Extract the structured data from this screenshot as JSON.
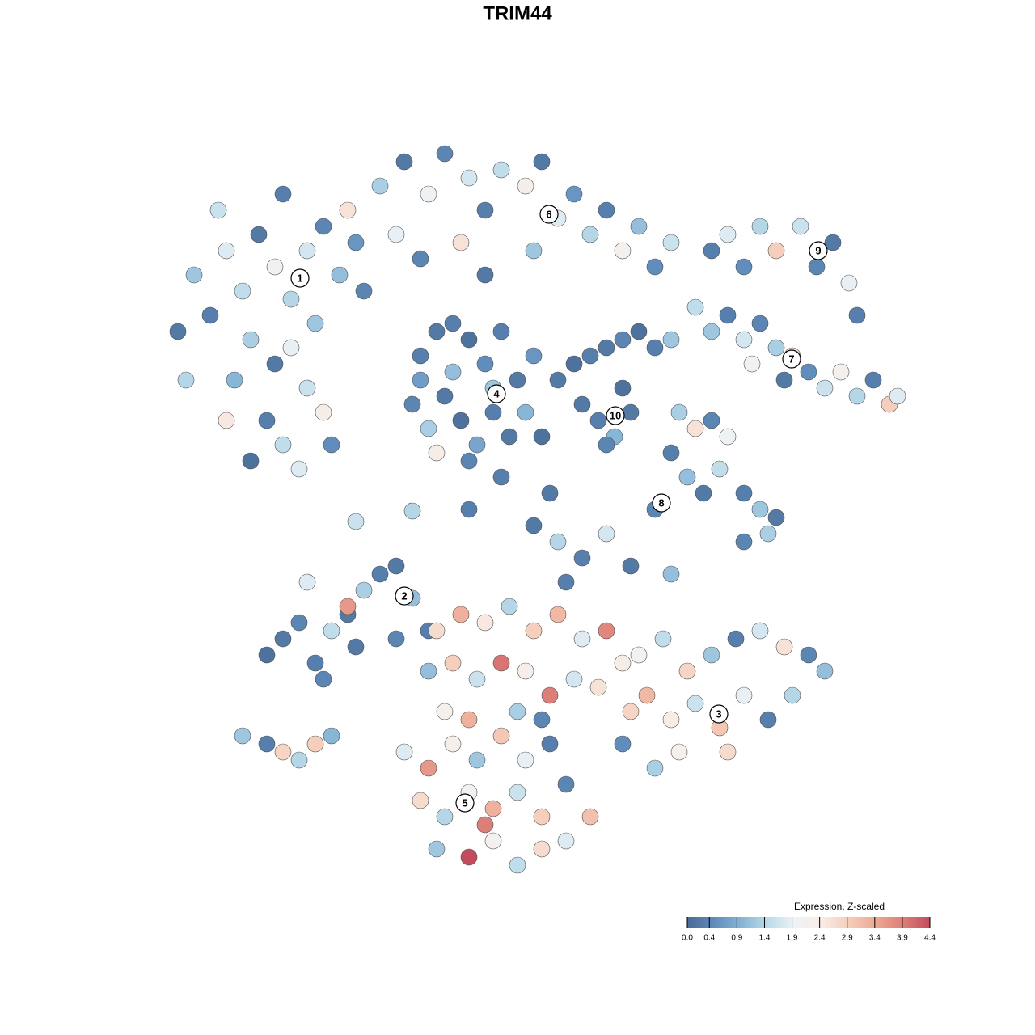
{
  "chart_data": {
    "type": "scatter",
    "title": "TRIM44",
    "xlim": [
      -64,
      64
    ],
    "ylim": [
      -64,
      64
    ],
    "x": [
      -40,
      -38,
      -36,
      -34,
      -32,
      -30,
      -28,
      -26,
      -24,
      -22,
      -20,
      -33,
      -30,
      -28,
      -26,
      -24,
      -31,
      -29,
      -33,
      -27,
      -23,
      -35,
      -42,
      -41,
      -37,
      -29,
      -21,
      -19,
      -25,
      -36,
      -17,
      -14,
      -11,
      -9,
      -6,
      -4,
      -2,
      1,
      3,
      5,
      7,
      9,
      11,
      13,
      15,
      17,
      19,
      -15,
      -12,
      -7,
      2,
      -4,
      -12,
      -10,
      -8,
      -6,
      -4,
      -2,
      0,
      2,
      -13,
      -11,
      -9,
      -7,
      -5,
      -3,
      -1,
      1,
      -10,
      -6,
      -8,
      -3,
      3,
      -12,
      5,
      7,
      9,
      11,
      13,
      15,
      17,
      19,
      8,
      10,
      12,
      14,
      13,
      11,
      22,
      24,
      26,
      28,
      30,
      32,
      34,
      36,
      38,
      40,
      42,
      44,
      46,
      47,
      33,
      29,
      24,
      26,
      28,
      30,
      32,
      35,
      37,
      39,
      41,
      42,
      20,
      22,
      24,
      26,
      19,
      21,
      23,
      25,
      28,
      30,
      32,
      28,
      31,
      2,
      5,
      8,
      11,
      14,
      17,
      19,
      6,
      -29,
      -31,
      -27,
      -25,
      -23,
      -21,
      -19,
      -17,
      -15,
      -13,
      -11,
      -24,
      -26,
      -20,
      -21,
      -15,
      -34,
      -31,
      -29,
      -27,
      -25,
      -23,
      -10,
      -7,
      -4,
      -1,
      2,
      5,
      8,
      11,
      13,
      -11,
      -8,
      -5,
      -2,
      1,
      4,
      7,
      10,
      -9,
      -6,
      0,
      3,
      14,
      15,
      18,
      21,
      24,
      27,
      30,
      33,
      36,
      38,
      16,
      19,
      22,
      25,
      28,
      31,
      34,
      20,
      17,
      26,
      13,
      -14,
      -11,
      -8,
      -5,
      -2,
      1,
      4,
      -12,
      -9,
      -6,
      -3,
      0,
      3,
      6,
      9,
      -10,
      -6,
      -3,
      0,
      3,
      6,
      -4,
      -20,
      -13,
      -6,
      4,
      -2
    ],
    "y": [
      30,
      25,
      33,
      28,
      35,
      31,
      27,
      33,
      36,
      30,
      34,
      22,
      19,
      21,
      16,
      13,
      12,
      9,
      7,
      6,
      9,
      17,
      23,
      17,
      38,
      40,
      38,
      28,
      24,
      12,
      41,
      44,
      40,
      45,
      42,
      38,
      43,
      41,
      44,
      37,
      40,
      35,
      38,
      33,
      36,
      31,
      34,
      35,
      32,
      34,
      33,
      30,
      20,
      23,
      18,
      22,
      19,
      23,
      17,
      20,
      14,
      11,
      15,
      12,
      9,
      13,
      10,
      13,
      8,
      7,
      24,
      16,
      10,
      17,
      17,
      19,
      20,
      21,
      22,
      23,
      21,
      22,
      14,
      12,
      10,
      13,
      16,
      9,
      26,
      23,
      25,
      22,
      24,
      21,
      20,
      18,
      16,
      18,
      15,
      17,
      14,
      15,
      17,
      19,
      33,
      35,
      31,
      36,
      33,
      36,
      31,
      34,
      29,
      25,
      13,
      11,
      12,
      10,
      8,
      5,
      3,
      6,
      3,
      1,
      0,
      -3,
      -2,
      -1,
      -3,
      -5,
      -2,
      -6,
      1,
      -7,
      -8,
      -15,
      -17,
      -13,
      -18,
      -14,
      -12,
      -9,
      -7,
      -6,
      -10,
      -14,
      -20,
      -8,
      -16,
      -11,
      -15,
      -27,
      -28,
      -29,
      -30,
      -28,
      -27,
      -14,
      -12,
      -13,
      -11,
      -14,
      -12,
      -15,
      -14,
      -18,
      -19,
      -18,
      -20,
      -18,
      -19,
      -22,
      -20,
      -21,
      -24,
      -25,
      -24,
      -25,
      -24,
      -17,
      -15,
      -19,
      -17,
      -15,
      -14,
      -16,
      -17,
      -19,
      -22,
      -25,
      -23,
      -26,
      -22,
      -25,
      -22,
      -29,
      -31,
      -29,
      -28,
      -29,
      -31,
      -28,
      -30,
      -27,
      -30,
      -28,
      -35,
      -37,
      -34,
      -36,
      -34,
      -37,
      -33,
      -37,
      -41,
      -42,
      -40,
      -43,
      -41,
      -40,
      -38,
      -0.5,
      0.8,
      1,
      3,
      5
    ],
    "values": [
      1.2,
      0.3,
      1.8,
      1.5,
      0.2,
      2.1,
      1.4,
      1.7,
      0.4,
      1.1,
      0.6,
      1.3,
      0.2,
      1.9,
      1.6,
      2.4,
      0.3,
      1.5,
      0.1,
      1.8,
      0.5,
      1.0,
      0.2,
      1.4,
      1.6,
      0.3,
      2.6,
      0.4,
      1.2,
      2.5,
      1.3,
      0.2,
      2.0,
      0.4,
      1.7,
      0.3,
      1.5,
      2.3,
      0.2,
      1.8,
      0.6,
      1.4,
      0.3,
      2.2,
      1.1,
      0.5,
      1.6,
      1.9,
      0.4,
      2.6,
      1.2,
      0.2,
      0.3,
      0.2,
      1.1,
      0.1,
      0.5,
      0.3,
      0.2,
      0.6,
      0.4,
      1.3,
      0.2,
      0.1,
      0.8,
      0.3,
      0.2,
      1.0,
      2.4,
      0.4,
      0.3,
      1.2,
      0.1,
      0.7,
      0.2,
      0.1,
      0.3,
      0.2,
      0.4,
      0.1,
      0.3,
      1.2,
      0.2,
      0.3,
      1.0,
      0.2,
      0.1,
      0.4,
      1.5,
      1.2,
      0.3,
      1.7,
      0.4,
      1.3,
      2.7,
      0.5,
      1.6,
      2.2,
      1.4,
      0.3,
      2.9,
      1.8,
      0.2,
      2.0,
      0.3,
      1.8,
      0.5,
      1.4,
      2.9,
      1.6,
      0.4,
      0.2,
      1.9,
      0.3,
      1.3,
      2.6,
      0.4,
      2.0,
      0.3,
      1.1,
      0.2,
      1.5,
      0.3,
      1.2,
      0.2,
      0.4,
      1.3,
      0.2,
      1.4,
      0.3,
      1.7,
      0.2,
      0.4,
      1.1,
      0.3,
      0.2,
      0.1,
      0.4,
      0.3,
      1.5,
      0.2,
      1.3,
      0.3,
      0.2,
      1.1,
      0.3,
      0.4,
      1.8,
      0.2,
      3.6,
      0.4,
      1.2,
      0.3,
      2.8,
      1.4,
      2.9,
      1.0,
      2.7,
      3.3,
      2.5,
      1.4,
      2.9,
      3.2,
      1.8,
      3.8,
      2.4,
      1.1,
      2.9,
      1.6,
      4.0,
      2.3,
      3.9,
      1.7,
      2.6,
      2.2,
      3.3,
      1.3,
      0.4,
      2.8,
      2.1,
      1.5,
      2.8,
      1.2,
      0.3,
      1.7,
      2.6,
      0.4,
      1.1,
      3.2,
      2.4,
      1.6,
      3.0,
      1.9,
      0.3,
      1.4,
      2.2,
      1.3,
      2.7,
      0.5,
      1.8,
      3.6,
      2.3,
      1.2,
      3.0,
      1.9,
      0.3,
      2.7,
      1.4,
      2.1,
      3.3,
      1.6,
      2.9,
      0.4,
      3.1,
      1.2,
      4.4,
      2.2,
      1.5,
      2.7,
      1.8,
      3.9,
      1.6,
      1.4,
      0.3,
      0.2,
      0.3
    ],
    "cluster_labels": [
      {
        "label": "1",
        "x": -26.9,
        "y": 29.6
      },
      {
        "label": "2",
        "x": -14,
        "y": -9.7
      },
      {
        "label": "3",
        "x": 24.9,
        "y": -24.3
      },
      {
        "label": "4",
        "x": -2.6,
        "y": 15.3
      },
      {
        "label": "5",
        "x": -6.5,
        "y": -35.3
      },
      {
        "label": "6",
        "x": 3.9,
        "y": 37.5
      },
      {
        "label": "7",
        "x": 33.9,
        "y": 19.6
      },
      {
        "label": "8",
        "x": 17.8,
        "y": 1.8
      },
      {
        "label": "9",
        "x": 37.2,
        "y": 33
      },
      {
        "label": "10",
        "x": 12.1,
        "y": 12.6
      }
    ],
    "colorbar": {
      "title": "Expression, Z-scaled",
      "clim": [
        0,
        4.4
      ],
      "colors": [
        "#4a6b96",
        "#5f8cbb",
        "#86b4d6",
        "#bcdbea",
        "#eef3f6",
        "#f8ece6",
        "#f5cdb9",
        "#eda893",
        "#dc7e77",
        "#c44b5c"
      ],
      "ticks": [
        {
          "value": 0,
          "label": "0.0"
        },
        0.4,
        0.9,
        1.4,
        1.9,
        2.4,
        2.9,
        3.4,
        3.9,
        4.4
      ]
    }
  }
}
